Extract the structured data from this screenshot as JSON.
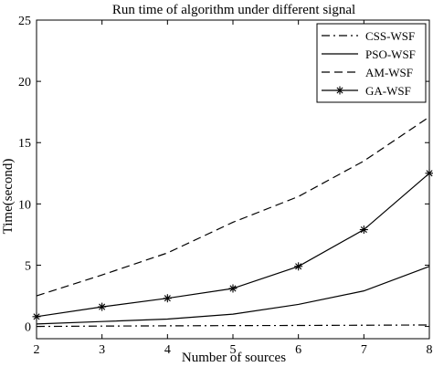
{
  "chart_data": {
    "type": "line",
    "title": "Run time of algorithm under different signal",
    "xlabel": "Number of sources",
    "ylabel": "Time(second)",
    "x": [
      2,
      3,
      4,
      5,
      6,
      7,
      8
    ],
    "xlim": [
      2,
      8
    ],
    "ylim": [
      -1,
      25
    ],
    "xticks": [
      "2",
      "3",
      "4",
      "5",
      "6",
      "7",
      "8"
    ],
    "yticks": [
      "0",
      "5",
      "10",
      "15",
      "20",
      "25"
    ],
    "grid": false,
    "legend_position": "top-right",
    "series": [
      {
        "name": "CSS-WSF",
        "style": "dash-dot",
        "marker": "none",
        "color": "#000000",
        "values": [
          0.0,
          0.03,
          0.05,
          0.07,
          0.08,
          0.1,
          0.12
        ]
      },
      {
        "name": "PSO-WSF",
        "style": "solid",
        "marker": "none",
        "color": "#000000",
        "values": [
          0.2,
          0.4,
          0.6,
          1.0,
          1.8,
          2.9,
          4.9
        ]
      },
      {
        "name": "AM-WSF",
        "style": "dashed",
        "marker": "none",
        "color": "#000000",
        "values": [
          2.5,
          4.2,
          6.0,
          8.5,
          10.6,
          13.5,
          17.1
        ]
      },
      {
        "name": "GA-WSF",
        "style": "solid",
        "marker": "asterisk",
        "color": "#000000",
        "values": [
          0.8,
          1.6,
          2.3,
          3.1,
          4.9,
          7.9,
          12.5
        ]
      }
    ]
  }
}
